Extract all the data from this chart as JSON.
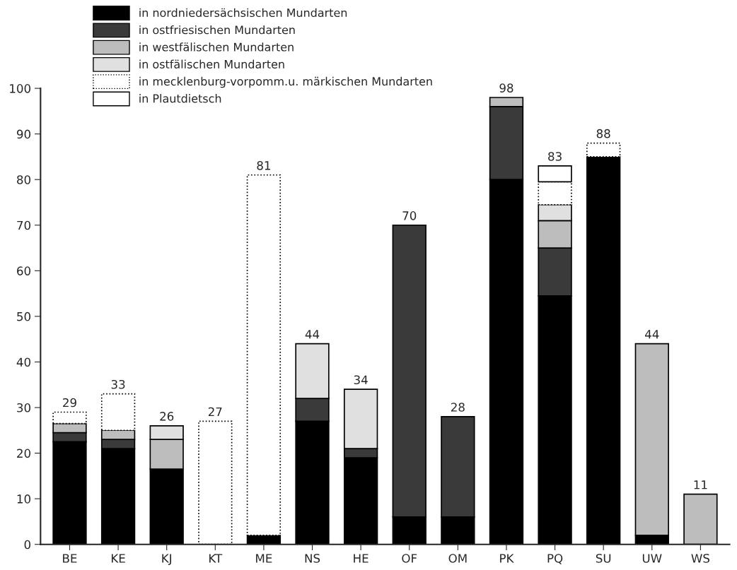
{
  "chart_data": {
    "type": "bar",
    "stacked": true,
    "categories": [
      "BE",
      "KE",
      "KJ",
      "KT",
      "ME",
      "NS",
      "HE",
      "OF",
      "OM",
      "PK",
      "PQ",
      "SU",
      "UW",
      "WS"
    ],
    "series": [
      {
        "name": "in nordniedersächsischen Mundarten",
        "color": "#000000",
        "values": [
          22.5,
          21,
          16.5,
          0,
          2,
          27,
          19,
          6,
          6,
          80,
          54.5,
          85,
          2,
          0
        ]
      },
      {
        "name": "in ostfriesischen Mundarten",
        "color": "#3a3a3a",
        "values": [
          2,
          2,
          0,
          0,
          0,
          5,
          2,
          64,
          22,
          16,
          10.5,
          0,
          0,
          0
        ]
      },
      {
        "name": "in westfälischen Mundarten",
        "color": "#bdbdbd",
        "values": [
          2,
          2,
          6.5,
          0,
          0,
          0,
          0,
          0,
          0,
          2,
          6,
          0,
          42,
          11
        ]
      },
      {
        "name": "in ostfälischen Mundarten",
        "color": "#e0e0e0",
        "values": [
          0,
          0,
          3,
          0,
          0,
          12,
          13,
          0,
          0,
          0,
          3.5,
          0,
          0,
          0
        ]
      },
      {
        "name": "in mecklenburg-vorpomm.u. märkischen Mundarten",
        "color": "#ffffff",
        "values": [
          2.5,
          8,
          0,
          27,
          79,
          0,
          0,
          0,
          0,
          0,
          5,
          3,
          0,
          0
        ]
      },
      {
        "name": "in Plautdietsch",
        "color": "#ffffff",
        "values": [
          0,
          0,
          0,
          0,
          0,
          0,
          0,
          0,
          0,
          0,
          3.5,
          0,
          0,
          0
        ]
      }
    ],
    "totals": [
      "29",
      "33",
      "26",
      "27",
      "81",
      "44",
      "34",
      "70",
      "28",
      "98",
      "83",
      "88",
      "44",
      "11"
    ],
    "ylim": [
      0,
      100
    ],
    "yticks": [
      0,
      10,
      20,
      30,
      40,
      50,
      60,
      70,
      80,
      90,
      100
    ],
    "grid": false,
    "legend": "top left"
  }
}
